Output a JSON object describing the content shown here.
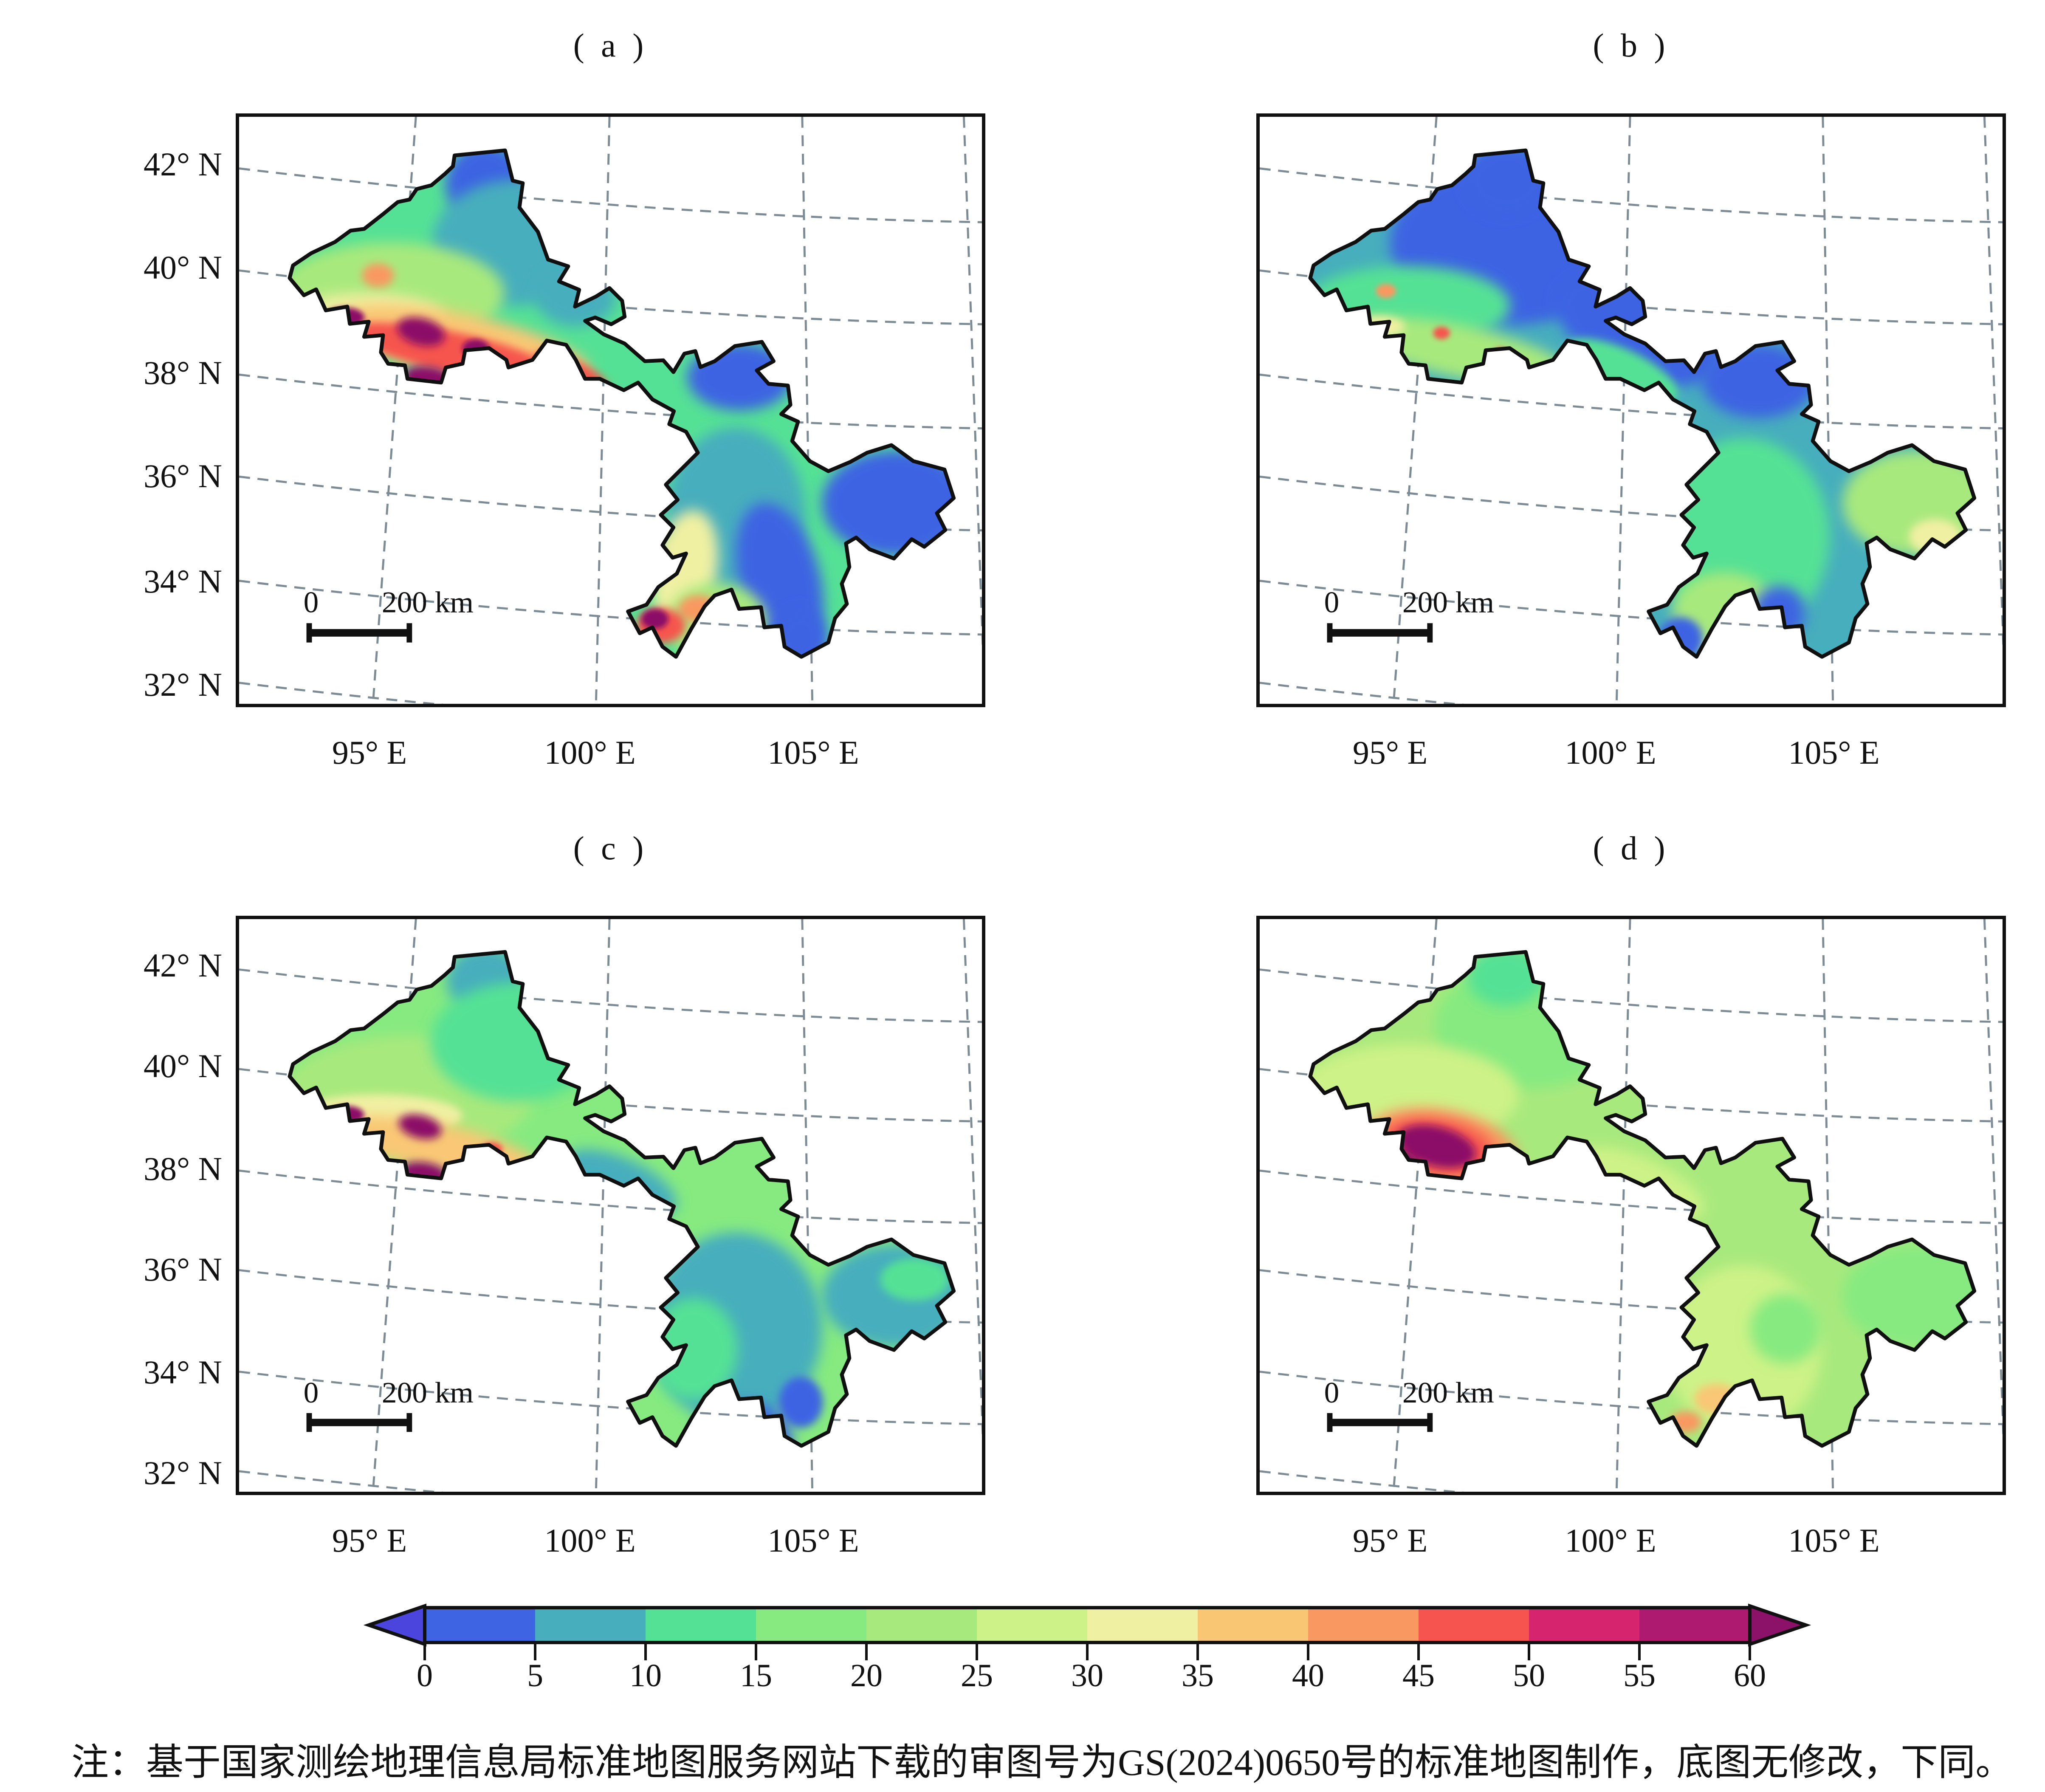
{
  "figure": {
    "kind": "four-panel contour map figure",
    "region": "Gansu Province, China"
  },
  "panels": [
    {
      "id": "a",
      "title": "( a )",
      "base": "#55e195",
      "description": "High (red/maroon) band along Qilian Mountains in NW lobe, blue north tip and eastern arm, teal-blue southeast lobe with warm patch and red hotspot in south",
      "regions": [
        [
          585,
          160,
          95,
          95,
          0,
          "#3e63e3"
        ],
        [
          660,
          300,
          200,
          150,
          0,
          "#47aebd"
        ],
        [
          800,
          430,
          95,
          70,
          0,
          "#47aebd"
        ],
        [
          360,
          420,
          270,
          120,
          0,
          "#a8e97d"
        ],
        [
          300,
          480,
          190,
          60,
          0,
          "#f0f0a2"
        ],
        [
          330,
          378,
          38,
          28,
          0,
          "#f99961"
        ],
        [
          530,
          545,
          310,
          75,
          12,
          "#f9c774"
        ],
        [
          505,
          560,
          250,
          48,
          12,
          "#f6544e"
        ],
        [
          250,
          478,
          48,
          24,
          0,
          "#8c1168"
        ],
        [
          432,
          512,
          58,
          32,
          15,
          "#8c1168"
        ],
        [
          452,
          625,
          62,
          30,
          10,
          "#8c1168"
        ],
        [
          562,
          552,
          32,
          22,
          0,
          "#8c1168"
        ],
        [
          790,
          605,
          95,
          26,
          25,
          "#f6544e"
        ],
        [
          945,
          705,
          85,
          24,
          30,
          "#f6544e"
        ],
        [
          1005,
          762,
          62,
          26,
          35,
          "#f99961"
        ],
        [
          1190,
          620,
          125,
          80,
          0,
          "#3e63e3"
        ],
        [
          1180,
          950,
          165,
          210,
          0,
          "#47aebd"
        ],
        [
          1285,
          1100,
          95,
          185,
          -15,
          "#3e63e3"
        ],
        [
          1060,
          1080,
          75,
          145,
          10,
          "#f0f0a2"
        ],
        [
          1135,
          1205,
          120,
          95,
          0,
          "#a8e97d"
        ],
        [
          1092,
          1172,
          48,
          32,
          0,
          "#f99961"
        ],
        [
          1002,
          1212,
          58,
          42,
          0,
          "#f6544e"
        ],
        [
          988,
          1196,
          32,
          24,
          0,
          "#8c1168"
        ],
        [
          1335,
          1245,
          65,
          75,
          0,
          "#3e63e3"
        ],
        [
          1560,
          920,
          175,
          125,
          0,
          "#3e63e3"
        ]
      ]
    },
    {
      "id": "b",
      "title": "( b )",
      "base": "#47aebd",
      "description": "Predominantly blue northwest lobe with teal and green streaks, small warm spots along Qilian edge, green-teal southeast lobe, light-green eastern arm",
      "regions": [
        [
          600,
          300,
          290,
          195,
          0,
          "#3e63e3"
        ],
        [
          900,
          505,
          210,
          115,
          25,
          "#3e63e3"
        ],
        [
          585,
          150,
          100,
          85,
          0,
          "#3e63e3"
        ],
        [
          350,
          450,
          245,
          95,
          0,
          "#55e195"
        ],
        [
          480,
          560,
          265,
          62,
          12,
          "#a8e97d"
        ],
        [
          280,
          500,
          65,
          26,
          0,
          "#f0f0a2"
        ],
        [
          300,
          415,
          24,
          17,
          0,
          "#f99961"
        ],
        [
          432,
          515,
          20,
          15,
          0,
          "#f6544e"
        ],
        [
          572,
          562,
          15,
          12,
          0,
          "#f6544e"
        ],
        [
          350,
          640,
          16,
          12,
          0,
          "#f6544e"
        ],
        [
          860,
          605,
          145,
          52,
          25,
          "#55e195"
        ],
        [
          1185,
          630,
          135,
          88,
          0,
          "#3e63e3"
        ],
        [
          1150,
          1000,
          205,
          235,
          0,
          "#55e195"
        ],
        [
          1105,
          1180,
          125,
          95,
          0,
          "#a8e97d"
        ],
        [
          1120,
          1272,
          75,
          42,
          0,
          "#f0f0a2"
        ],
        [
          1235,
          1180,
          62,
          62,
          0,
          "#3e63e3"
        ],
        [
          1000,
          1242,
          52,
          50,
          0,
          "#3e63e3"
        ],
        [
          1560,
          920,
          175,
          125,
          0,
          "#a8e97d"
        ],
        [
          1605,
          1000,
          62,
          42,
          0,
          "#f0f0a2"
        ]
      ]
    },
    {
      "id": "c",
      "title": "( c )",
      "base": "#86ea80",
      "description": "Light-green northwest lobe with pale yellow bands and maroon spots along Qilian Mountains, teal southeast lobe with blue patches in the south",
      "regions": [
        [
          400,
          430,
          300,
          145,
          0,
          "#a8e97d"
        ],
        [
          330,
          480,
          200,
          52,
          0,
          "#f0f0a2"
        ],
        [
          585,
          150,
          92,
          82,
          0,
          "#47aebd"
        ],
        [
          660,
          300,
          205,
          145,
          0,
          "#55e195"
        ],
        [
          470,
          557,
          245,
          58,
          12,
          "#f9c774"
        ],
        [
          255,
          478,
          42,
          22,
          0,
          "#8c1168"
        ],
        [
          430,
          507,
          52,
          28,
          15,
          "#8c1168"
        ],
        [
          440,
          622,
          57,
          28,
          10,
          "#8c1168"
        ],
        [
          600,
          562,
          26,
          17,
          0,
          "#f6544e"
        ],
        [
          905,
          645,
          145,
          62,
          25,
          "#47aebd"
        ],
        [
          1180,
          1000,
          205,
          235,
          0,
          "#47aebd"
        ],
        [
          1080,
          1050,
          105,
          125,
          0,
          "#55e195"
        ],
        [
          1200,
          1272,
          115,
          92,
          0,
          "#3e63e3"
        ],
        [
          1335,
          1180,
          52,
          62,
          0,
          "#3e63e3"
        ],
        [
          1560,
          920,
          175,
          125,
          0,
          "#47aebd"
        ],
        [
          1605,
          880,
          82,
          52,
          0,
          "#55e195"
        ]
      ]
    },
    {
      "id": "d",
      "title": "( d )",
      "base": "#a8e97d",
      "description": "Yellow-green province overall with a large dark-red/maroon patch ringed by orange in the west-central Qilian area and small orange spots in the south",
      "regions": [
        [
          640,
          260,
          225,
          155,
          0,
          "#86ea80"
        ],
        [
          585,
          140,
          92,
          72,
          0,
          "#55e195"
        ],
        [
          700,
          190,
          26,
          16,
          0,
          "#f99961"
        ],
        [
          350,
          430,
          265,
          125,
          0,
          "#cdf287"
        ],
        [
          430,
          560,
          185,
          95,
          10,
          "#f99961"
        ],
        [
          422,
          556,
          135,
          68,
          10,
          "#f6544e"
        ],
        [
          420,
          555,
          95,
          48,
          15,
          "#8c1168"
        ],
        [
          330,
          600,
          48,
          37,
          0,
          "#8c1168"
        ],
        [
          215,
          490,
          30,
          19,
          0,
          "#f6544e"
        ],
        [
          905,
          645,
          165,
          62,
          25,
          "#cdf287"
        ],
        [
          1150,
          1050,
          185,
          205,
          0,
          "#cdf287"
        ],
        [
          1085,
          1172,
          52,
          37,
          0,
          "#f9c774"
        ],
        [
          1012,
          1228,
          37,
          26,
          0,
          "#f99961"
        ],
        [
          1250,
          1000,
          85,
          85,
          0,
          "#86ea80"
        ],
        [
          1560,
          920,
          175,
          125,
          0,
          "#86ea80"
        ]
      ]
    }
  ],
  "axes": {
    "lat_labels": [
      "42° N",
      "40° N",
      "38° N",
      "36° N",
      "34° N",
      "32° N"
    ],
    "lon_labels": [
      "95° E",
      "100° E",
      "105° E"
    ]
  },
  "scalebar": {
    "zero_label": "0",
    "distance_label": "200 km"
  },
  "colorbar": {
    "tick_labels": [
      "0",
      "5",
      "10",
      "15",
      "20",
      "25",
      "30",
      "35",
      "40",
      "45",
      "50",
      "55",
      "60"
    ],
    "segment_colors": [
      "#3e63e3",
      "#47aebd",
      "#55e195",
      "#86ea80",
      "#a8e97d",
      "#cdf287",
      "#f0f0a2",
      "#f9c774",
      "#f99961",
      "#f6544e",
      "#d6256e",
      "#ad1a70"
    ],
    "left_arrow_color": "#4b44dd",
    "right_arrow_color": "#8c1168",
    "extend": "both"
  },
  "grid": {
    "color": "#7d8c94",
    "dash": "26 18"
  },
  "map": {
    "outline_color": "#101010"
  },
  "note": {
    "text": "注：基于国家测绘地理信息局标准地图服务网站下载的审图号为GS(2024)0650号的标准地图制作，底图无修改，下同。"
  },
  "chart_data": {
    "type": "heatmap",
    "subtype": "filled-contour maps on province outline",
    "region": "Gansu Province, China",
    "panel_labels": [
      "( a )",
      "( b )",
      "( c )",
      "( d )"
    ],
    "lat_ticks_deg_n": [
      42,
      40,
      38,
      36,
      34,
      32
    ],
    "lon_ticks_deg_e": [
      95,
      100,
      105
    ],
    "scale_bar_km": 200,
    "colorbar_levels": [
      0,
      5,
      10,
      15,
      20,
      25,
      30,
      35,
      40,
      45,
      50,
      55,
      60
    ],
    "colorbar_extend": "both",
    "colorbar_colors": [
      "#4b44dd",
      "#3e63e3",
      "#47aebd",
      "#55e195",
      "#86ea80",
      "#a8e97d",
      "#cdf287",
      "#f0f0a2",
      "#f9c774",
      "#f99961",
      "#f6544e",
      "#d6256e",
      "#ad1a70",
      "#8c1168"
    ],
    "legend_position": "bottom",
    "grid": "dashed graticule on",
    "panel_value_summaries": [
      {
        "panel": "a",
        "typical_range": "5-20",
        "maxima": ">60 along Qilian Mountains and southern tip",
        "minima": "<5 in north tip, eastern arm and southeast valleys"
      },
      {
        "panel": "b",
        "typical_range": "0-10 northwest, 10-20 southeast",
        "maxima": "45-60 isolated Qilian spots",
        "minima": "<5 across northwest lobe"
      },
      {
        "panel": "c",
        "typical_range": "10-25 northwest, 5-15 southeast",
        "maxima": ">55 Qilian spots",
        "minima": "<5 southern patches"
      },
      {
        "panel": "d",
        "typical_range": "20-30 province-wide",
        "maxima": ">60 large west-central patch",
        "minima": "10-15 green patches north and east"
      }
    ]
  }
}
